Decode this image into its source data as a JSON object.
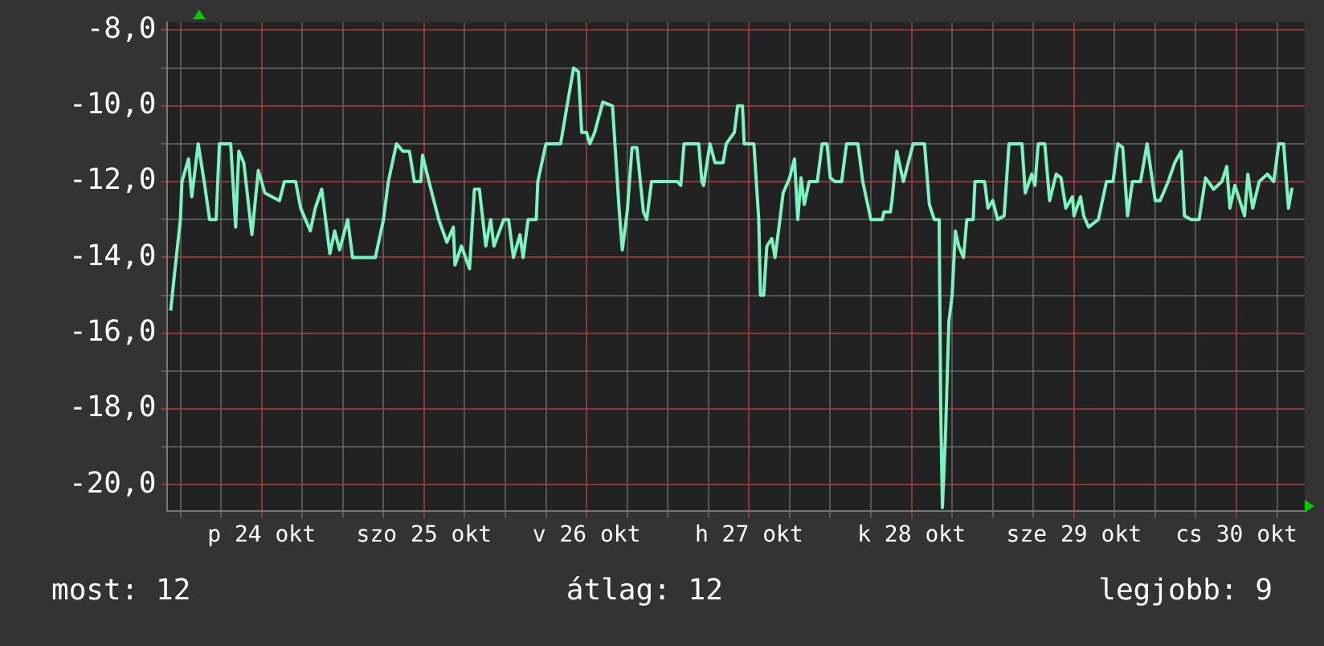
{
  "chart_data": {
    "type": "line",
    "x": [
      "--10-23T10:34",
      "--10-23T11:02",
      "--10-23T12:00",
      "--10-23T12:14",
      "--10-23T13:12",
      "--10-23T13:41",
      "--10-23T14:38",
      "--10-23T15:36",
      "--10-23T16:19",
      "--10-23T17:17",
      "--10-23T17:46",
      "--10-23T19:26",
      "--10-23T20:10",
      "--10-23T20:38",
      "--10-23T21:22",
      "--10-23T22:34",
      "--10-23T23:31",
      "--10-24T00:29",
      "--10-24T02:38",
      "--10-24T03:22",
      "--10-24T05:02",
      "--10-24T05:46",
      "--10-24T07:12",
      "--10-24T07:55",
      "--10-24T08:53",
      "--10-24T10:05",
      "--10-24T10:48",
      "--10-24T11:31",
      "--10-24T12:43",
      "--10-24T13:26",
      "--10-24T16:48",
      "--10-24T18:00",
      "--10-24T18:43",
      "--10-24T19:55",
      "--10-24T20:53",
      "--10-24T21:50",
      "--10-24T22:34",
      "--10-24T23:31",
      "--10-24T23:46",
      "--10-25T00:43",
      "--10-25T02:10",
      "--10-25T03:22",
      "--10-25T04:19",
      "--10-25T04:34",
      "--10-25T05:31",
      "--10-25T06:43",
      "--10-25T07:26",
      "--10-25T08:10",
      "--10-25T09:07",
      "--10-25T09:50",
      "--10-25T10:19",
      "--10-25T11:46",
      "--10-25T12:29",
      "--10-25T13:12",
      "--10-25T14:10",
      "--10-25T14:38",
      "--10-25T15:22",
      "--10-25T16:34",
      "--10-25T16:48",
      "--10-25T18:00",
      "--10-25T20:10",
      "--10-25T21:07",
      "--10-25T22:05",
      "--10-25T22:48",
      "--10-25T23:17",
      "--10-26T00:00",
      "--10-26T00:29",
      "--10-26T01:12",
      "--10-26T02:24",
      "--10-26T03:50",
      "--10-26T04:48",
      "--10-26T05:17",
      "--10-26T06:00",
      "--10-26T06:43",
      "--10-26T07:26",
      "--10-26T08:24",
      "--10-26T08:53",
      "--10-26T09:36",
      "--10-26T13:26",
      "--10-26T13:55",
      "--10-26T14:24",
      "--10-26T16:34",
      "--10-26T17:02",
      "--10-26T17:17",
      "--10-26T18:14",
      "--10-26T18:58",
      "--10-26T20:10",
      "--10-26T20:38",
      "--10-26T21:50",
      "--10-26T22:19",
      "--10-26T23:02",
      "--10-26T23:17",
      "--10-27T00:43",
      "--10-27T01:26",
      "--10-27T01:41",
      "--10-27T02:10",
      "--10-27T02:38",
      "--10-27T03:22",
      "--10-27T03:50",
      "--10-27T04:34",
      "--10-27T05:02",
      "--10-27T06:00",
      "--10-27T06:43",
      "--10-27T07:12",
      "--10-27T07:41",
      "--10-27T08:10",
      "--10-27T08:53",
      "--10-27T10:05",
      "--10-27T10:48",
      "--10-27T11:31",
      "--10-27T12:00",
      "--10-27T12:43",
      "--10-27T13:41",
      "--10-27T14:24",
      "--10-27T16:05",
      "--10-27T16:48",
      "--10-27T18:00",
      "--10-27T19:41",
      "--10-27T19:55",
      "--10-27T20:53",
      "--10-27T21:07",
      "--10-27T21:50",
      "--10-27T22:48",
      "--10-27T23:31",
      "--10-28T00:14",
      "--10-28T01:55",
      "--10-28T02:38",
      "--10-28T03:22",
      "--10-28T04:05",
      "--10-28T04:19",
      "--10-28T04:34",
      "--10-28T05:02",
      "--10-28T05:31",
      "--10-28T06:00",
      "--10-28T06:29",
      "--10-28T06:58",
      "--10-28T07:41",
      "--10-28T08:10",
      "--10-28T09:07",
      "--10-28T09:22",
      "--10-28T10:48",
      "--10-28T11:17",
      "--10-28T12:00",
      "--10-28T12:43",
      "--10-28T13:41",
      "--10-28T14:24",
      "--10-28T16:19",
      "--10-28T16:48",
      "--10-28T17:46",
      "--10-28T18:14",
      "--10-28T18:43",
      "--10-28T19:41",
      "--10-28T20:24",
      "--10-28T21:22",
      "--10-28T22:05",
      "--10-28T22:48",
      "--10-28T23:46",
      "--10-29T00:00",
      "--10-29T00:58",
      "--10-29T01:26",
      "--10-29T02:10",
      "--10-29T03:36",
      "--10-29T04:48",
      "--10-29T05:46",
      "--10-29T06:29",
      "--10-29T07:12",
      "--10-29T07:55",
      "--10-29T08:38",
      "--10-29T09:50",
      "--10-29T10:48",
      "--10-29T12:00",
      "--10-29T12:43",
      "--10-29T13:12",
      "--10-29T13:55",
      "--10-29T14:53",
      "--10-29T15:50",
      "--10-29T16:19",
      "--10-29T17:17",
      "--10-29T18:29",
      "--10-29T19:26",
      "--10-29T20:38",
      "--10-29T21:50",
      "--10-29T22:34",
      "--10-29T23:02",
      "--10-29T23:46",
      "--10-30T00:29",
      "--10-30T01:12",
      "--10-30T01:41",
      "--10-30T02:24",
      "--10-30T03:22",
      "--10-30T04:34",
      "--10-30T05:31",
      "--10-30T06:14",
      "--10-30T06:58",
      "--10-30T07:41",
      "--10-30T08:10",
      "--10-30T08:24"
    ],
    "series": [
      {
        "color": "#7cf4c0",
        "values": [
          -15.4,
          -14.6,
          -13.0,
          -12.0,
          -11.4,
          -12.4,
          -11.0,
          -12.1,
          -13.0,
          -13.0,
          -11.0,
          -11.0,
          -13.2,
          -11.2,
          -11.5,
          -13.4,
          -11.7,
          -12.3,
          -12.5,
          -12.0,
          -12.0,
          -12.7,
          -13.3,
          -12.7,
          -12.2,
          -13.9,
          -13.3,
          -13.8,
          -13.0,
          -14.0,
          -14.0,
          -13.0,
          -12.0,
          -11.0,
          -11.2,
          -11.2,
          -12.0,
          -12.0,
          -11.3,
          -12.0,
          -13.0,
          -13.6,
          -13.2,
          -14.2,
          -13.7,
          -14.3,
          -12.2,
          -12.2,
          -13.7,
          -13.0,
          -13.7,
          -13.0,
          -13.0,
          -14.0,
          -13.4,
          -14.0,
          -13.0,
          -13.0,
          -12.0,
          -11.0,
          -11.0,
          -10.0,
          -9.0,
          -9.1,
          -10.7,
          -10.7,
          -11.0,
          -10.7,
          -9.9,
          -10.0,
          -12.7,
          -13.8,
          -12.8,
          -11.1,
          -11.1,
          -12.8,
          -13.0,
          -12.0,
          -12.0,
          -12.1,
          -11.0,
          -11.0,
          -12.0,
          -12.1,
          -11.0,
          -11.5,
          -11.5,
          -11.0,
          -10.7,
          -10.0,
          -10.0,
          -11.0,
          -11.0,
          -13.0,
          -15.0,
          -15.0,
          -13.7,
          -13.5,
          -14.0,
          -13.0,
          -12.3,
          -11.9,
          -11.4,
          -13.0,
          -11.9,
          -12.6,
          -12.0,
          -12.0,
          -11.0,
          -11.0,
          -11.9,
          -12.0,
          -12.0,
          -11.0,
          -11.0,
          -12.0,
          -13.0,
          -13.0,
          -12.8,
          -12.8,
          -12.5,
          -11.2,
          -12.0,
          -11.5,
          -11.0,
          -11.0,
          -12.6,
          -13.0,
          -13.0,
          -18.0,
          -20.6,
          -18.6,
          -15.7,
          -15.0,
          -13.3,
          -13.7,
          -14.0,
          -13.0,
          -13.0,
          -12.0,
          -12.0,
          -12.7,
          -12.5,
          -13.0,
          -12.9,
          -11.0,
          -11.0,
          -12.3,
          -11.8,
          -12.1,
          -11.0,
          -11.0,
          -12.5,
          -11.8,
          -11.9,
          -12.7,
          -12.4,
          -12.9,
          -12.4,
          -12.9,
          -13.2,
          -13.0,
          -12.0,
          -12.0,
          -11.0,
          -11.1,
          -12.9,
          -12.0,
          -12.0,
          -11.0,
          -12.5,
          -12.5,
          -12.3,
          -12.0,
          -11.5,
          -11.2,
          -12.9,
          -13.0,
          -13.0,
          -11.9,
          -12.2,
          -12.0,
          -11.6,
          -12.7,
          -12.1,
          -12.5,
          -12.9,
          -11.8,
          -12.7,
          -12.0,
          -11.8,
          -12.0,
          -11.0,
          -11.0,
          -12.7,
          -12.2,
          -12.2
        ]
      }
    ],
    "xlim": [
      "--10-23T10:05",
      "--10-30T10:05"
    ],
    "xticks": [
      {
        "value": "--10-23T12:00",
        "label": null
      },
      {
        "value": "--10-23T18:00",
        "label": null
      },
      {
        "value": "--10-24",
        "label": "p 24 okt"
      },
      {
        "value": "--10-24T06:00",
        "label": null
      },
      {
        "value": "--10-24T12:00",
        "label": null
      },
      {
        "value": "--10-24T18:00",
        "label": null
      },
      {
        "value": "--10-25",
        "label": "szo 25 okt"
      },
      {
        "value": "--10-25T06:00",
        "label": null
      },
      {
        "value": "--10-25T12:00",
        "label": null
      },
      {
        "value": "--10-25T18:00",
        "label": null
      },
      {
        "value": "--10-26",
        "label": "v 26 okt"
      },
      {
        "value": "--10-26T06:00",
        "label": null
      },
      {
        "value": "--10-26T12:00",
        "label": null
      },
      {
        "value": "--10-26T18:00",
        "label": null
      },
      {
        "value": "--10-27",
        "label": "h 27 okt"
      },
      {
        "value": "--10-27T06:00",
        "label": null
      },
      {
        "value": "--10-27T12:00",
        "label": null
      },
      {
        "value": "--10-27T18:00",
        "label": null
      },
      {
        "value": "--10-28",
        "label": "k 28 okt"
      },
      {
        "value": "--10-28T06:00",
        "label": null
      },
      {
        "value": "--10-28T12:00",
        "label": null
      },
      {
        "value": "--10-28T18:00",
        "label": null
      },
      {
        "value": "--10-29",
        "label": "sze 29 okt"
      },
      {
        "value": "--10-29T06:00",
        "label": null
      },
      {
        "value": "--10-29T12:00",
        "label": null
      },
      {
        "value": "--10-29T18:00",
        "label": null
      },
      {
        "value": "--10-30",
        "label": "cs 30 okt"
      },
      {
        "value": "--10-30T06:00",
        "label": null
      }
    ],
    "ylim": [
      -20.7,
      -7.8
    ],
    "yticks": [
      {
        "value": -20,
        "label": "-20,0"
      },
      {
        "value": -19,
        "label": null
      },
      {
        "value": -18,
        "label": "-18,0"
      },
      {
        "value": -17,
        "label": null
      },
      {
        "value": -16,
        "label": "-16,0"
      },
      {
        "value": -15,
        "label": null
      },
      {
        "value": -14,
        "label": "-14,0"
      },
      {
        "value": -13,
        "label": null
      },
      {
        "value": -12,
        "label": "-12,0"
      },
      {
        "value": -11,
        "label": null
      },
      {
        "value": -10,
        "label": "-10,0"
      },
      {
        "value": -9,
        "label": null
      },
      {
        "value": -8,
        "label": "-8,0"
      }
    ],
    "grid": true,
    "marker": "none",
    "line_style": "solid",
    "annotations": [
      "most: 12",
      "átlag: 12",
      "legjobb: 9"
    ]
  }
}
